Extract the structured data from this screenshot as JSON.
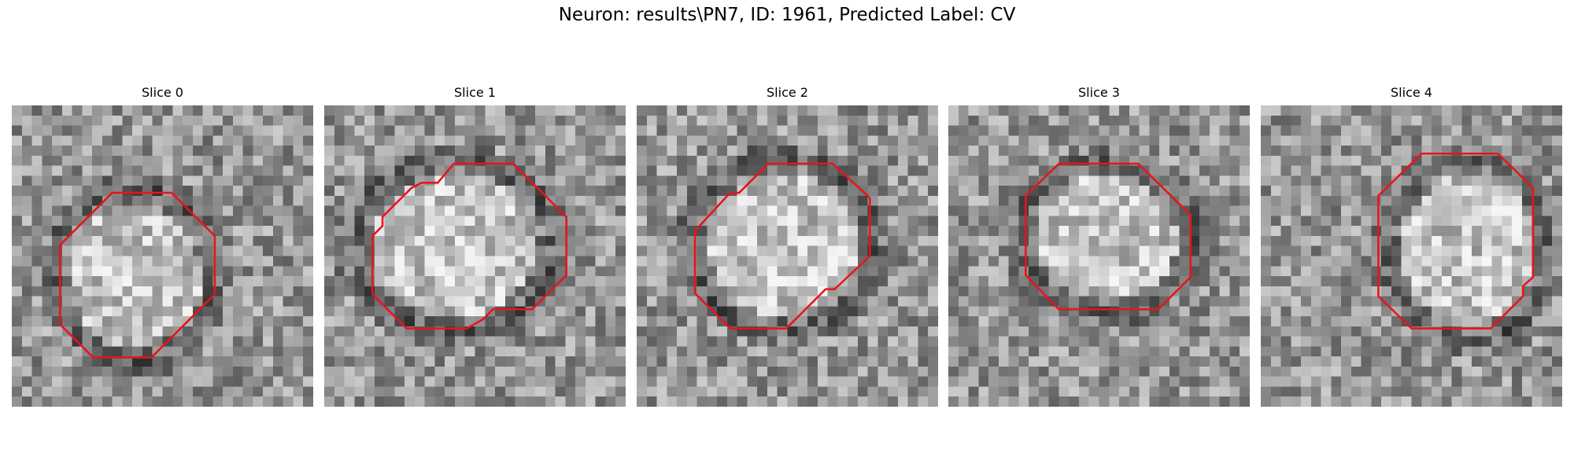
{
  "title": "Neuron: results\\PN7, ID: 1961, Predicted Label: CV",
  "panels": [
    {
      "title": "Slice 0"
    },
    {
      "title": "Slice 1"
    },
    {
      "title": "Slice 2"
    },
    {
      "title": "Slice 3"
    },
    {
      "title": "Slice 4"
    }
  ]
}
